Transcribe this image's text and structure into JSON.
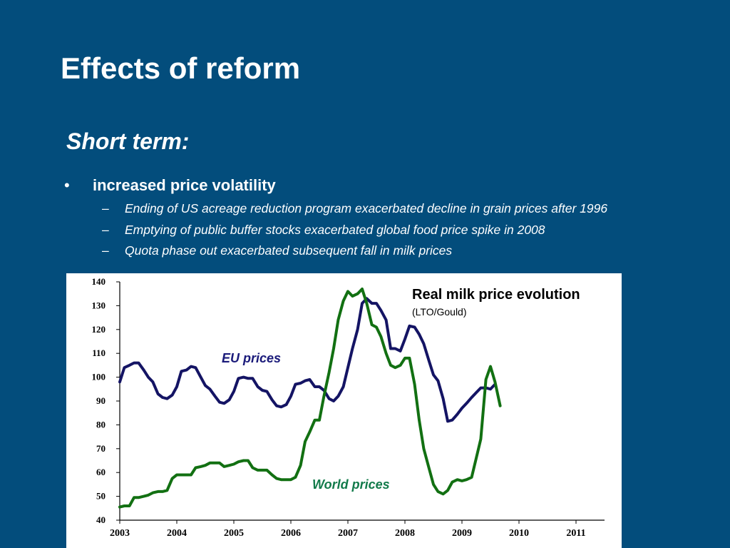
{
  "slide": {
    "title": "Effects of reform",
    "subheading": "Short term:",
    "bullet_symbol": "•",
    "bullet": "increased price volatility",
    "sub_bullet_symbol": "–",
    "sub_bullets": [
      "Ending of US acreage reduction program exacerbated decline in grain prices after 1996",
      "Emptying of public buffer stocks exacerbated global food price spike in 2008",
      "Quota phase out exacerbated subsequent fall in milk prices"
    ],
    "background_color": "#034d7c"
  },
  "chart_data": {
    "type": "line",
    "title": "Real milk price evolution",
    "subtitle": "(LTO/Gould)",
    "xlabel": "",
    "ylabel": "",
    "ylim": [
      40,
      140
    ],
    "xlim": [
      2003,
      2011.5
    ],
    "yticks": [
      40,
      50,
      60,
      70,
      80,
      90,
      100,
      110,
      120,
      130,
      140
    ],
    "xticks": [
      "2003",
      "2004",
      "2005",
      "2006",
      "2007",
      "2008",
      "2009",
      "2010",
      "2011"
    ],
    "grid": false,
    "series": [
      {
        "name": "EU prices",
        "color": "#141464",
        "x": [
          2003.0,
          2003.08,
          2003.17,
          2003.25,
          2003.33,
          2003.42,
          2003.5,
          2003.58,
          2003.67,
          2003.75,
          2003.83,
          2003.92,
          2004.0,
          2004.08,
          2004.17,
          2004.25,
          2004.33,
          2004.42,
          2004.5,
          2004.58,
          2004.67,
          2004.75,
          2004.83,
          2004.92,
          2005.0,
          2005.08,
          2005.17,
          2005.25,
          2005.33,
          2005.42,
          2005.5,
          2005.58,
          2005.67,
          2005.75,
          2005.83,
          2005.92,
          2006.0,
          2006.08,
          2006.17,
          2006.25,
          2006.33,
          2006.42,
          2006.5,
          2006.58,
          2006.67,
          2006.75,
          2006.83,
          2006.92,
          2007.0,
          2007.08,
          2007.17,
          2007.25,
          2007.33,
          2007.42,
          2007.5,
          2007.58,
          2007.67,
          2007.75,
          2007.83,
          2007.92,
          2008.0,
          2008.08,
          2008.17,
          2008.25,
          2008.33,
          2008.42,
          2008.5,
          2008.58,
          2008.67,
          2008.75,
          2008.83,
          2008.92,
          2009.0,
          2009.08,
          2009.17,
          2009.25,
          2009.33,
          2009.42,
          2009.5,
          2009.58
        ],
        "values": [
          98,
          104,
          105,
          106,
          106,
          103,
          100,
          98,
          93,
          91.5,
          91,
          92.5,
          96,
          102.5,
          103,
          104.5,
          104,
          100,
          96.5,
          95,
          92,
          89.5,
          89,
          90.5,
          94,
          99.5,
          100,
          99.5,
          99.5,
          96,
          94.5,
          94,
          90.5,
          88,
          87.5,
          88.5,
          92,
          97,
          97.5,
          98.5,
          99,
          96,
          96,
          94.5,
          91,
          90,
          92,
          96,
          104,
          112,
          120,
          131,
          133,
          131,
          131,
          128,
          124,
          112,
          112,
          111,
          116,
          121.5,
          121,
          118,
          114,
          107,
          101,
          98.5,
          91,
          81.5,
          82,
          84.5,
          87,
          89,
          91.5,
          93.5,
          95.5,
          95.5,
          95,
          97
        ]
      },
      {
        "name": "World prices",
        "color": "#127012",
        "x": [
          2003.0,
          2003.08,
          2003.17,
          2003.25,
          2003.33,
          2003.42,
          2003.5,
          2003.58,
          2003.67,
          2003.75,
          2003.83,
          2003.92,
          2004.0,
          2004.08,
          2004.17,
          2004.25,
          2004.33,
          2004.42,
          2004.5,
          2004.58,
          2004.67,
          2004.75,
          2004.83,
          2004.92,
          2005.0,
          2005.08,
          2005.17,
          2005.25,
          2005.33,
          2005.42,
          2005.5,
          2005.58,
          2005.67,
          2005.75,
          2005.83,
          2005.92,
          2006.0,
          2006.08,
          2006.17,
          2006.25,
          2006.33,
          2006.42,
          2006.5,
          2006.58,
          2006.67,
          2006.75,
          2006.83,
          2006.92,
          2007.0,
          2007.08,
          2007.17,
          2007.25,
          2007.33,
          2007.42,
          2007.5,
          2007.58,
          2007.67,
          2007.75,
          2007.83,
          2007.92,
          2008.0,
          2008.08,
          2008.17,
          2008.25,
          2008.33,
          2008.42,
          2008.5,
          2008.58,
          2008.67,
          2008.75,
          2008.83,
          2008.92,
          2009.0,
          2009.08,
          2009.17,
          2009.25,
          2009.33,
          2009.42,
          2009.5,
          2009.58,
          2009.67
        ],
        "values": [
          45.5,
          46,
          46,
          49.5,
          49.5,
          50,
          50.5,
          51.5,
          52,
          52,
          52.5,
          57.5,
          59,
          59,
          59,
          59,
          62,
          62.5,
          63,
          64,
          64,
          64,
          62.5,
          63,
          63.5,
          64.5,
          65,
          65,
          62,
          61,
          61,
          61,
          59,
          57.5,
          57,
          57,
          57,
          58,
          63,
          73,
          77,
          82,
          82,
          92,
          102,
          112,
          124,
          132,
          136,
          134,
          135,
          137,
          131,
          122,
          121,
          117,
          110,
          105,
          104,
          105,
          108,
          108,
          97,
          82,
          70,
          62,
          55,
          52,
          51,
          52.5,
          56,
          57,
          56.5,
          57,
          58,
          66,
          74,
          99,
          104.5,
          98,
          88
        ]
      }
    ]
  }
}
